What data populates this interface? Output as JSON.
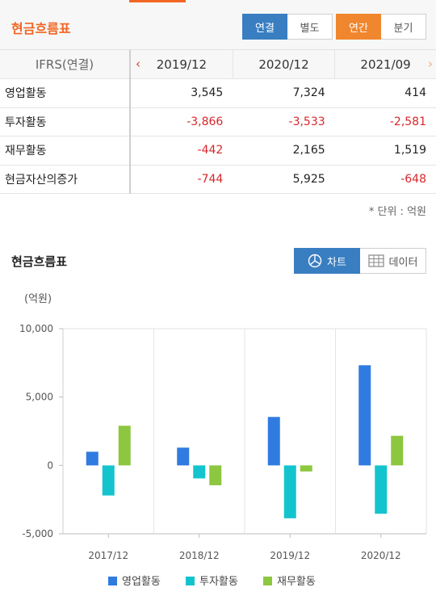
{
  "header": {
    "title": "현금흐름표",
    "consolidation": [
      "연결",
      "별도"
    ],
    "period": [
      "연간",
      "분기"
    ]
  },
  "table": {
    "corner": "IFRS(연결)",
    "columns": [
      "2019/12",
      "2020/12",
      "2021/09"
    ],
    "rows": [
      {
        "label": "영업활동",
        "values": [
          "3,545",
          "7,324",
          "414"
        ]
      },
      {
        "label": "투자활동",
        "values": [
          "-3,866",
          "-3,533",
          "-2,581"
        ]
      },
      {
        "label": "재무활동",
        "values": [
          "-442",
          "2,165",
          "1,519"
        ]
      },
      {
        "label": "현금자산의증가",
        "values": [
          "-744",
          "5,925",
          "-648"
        ]
      }
    ],
    "unit_note": "* 단위 : 억원"
  },
  "chart_section": {
    "title": "현금흐름표",
    "chart_button": "차트",
    "data_button": "데이터"
  },
  "colors": {
    "accent": "#f26522",
    "blue_button": "#3a7ec2",
    "orange_button": "#f0862e",
    "negative": "#d9262b"
  },
  "chart_data": {
    "type": "bar",
    "unit_label": "(억원)",
    "categories": [
      "2017/12",
      "2018/12",
      "2019/12",
      "2020/12"
    ],
    "series": [
      {
        "name": "영업활동",
        "color": "#2f7be0",
        "values": [
          1000,
          1300,
          3545,
          7324
        ]
      },
      {
        "name": "투자활동",
        "color": "#13c4cf",
        "values": [
          -2200,
          -950,
          -3866,
          -3533
        ]
      },
      {
        "name": "재무활동",
        "color": "#8dc63f",
        "values": [
          2900,
          -1450,
          -442,
          2165
        ]
      }
    ],
    "ylim": [
      -5000,
      10000
    ],
    "yticks": [
      -5000,
      0,
      5000,
      10000
    ],
    "ytick_labels": [
      "-5,000",
      "0",
      "5,000",
      "10,000"
    ],
    "grid": "vertical category separators",
    "legend": "bottom"
  }
}
